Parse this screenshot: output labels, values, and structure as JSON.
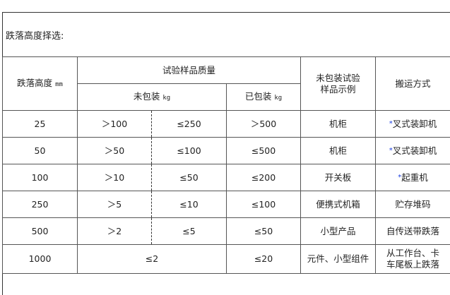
{
  "title": "跌落高度择选:",
  "header": {
    "height": "跌落高度",
    "height_unit": "mm",
    "mass": "试验样品质量",
    "unpacked": "未包装",
    "unpacked_unit": "kg",
    "packed": "已包装",
    "packed_unit": "kg",
    "example_line1": "未包装试验",
    "example_line2": "样品示例",
    "handling": "搬运方式"
  },
  "accent_color": "#1a3de0",
  "rows": [
    {
      "height": "25",
      "min": "＞100",
      "max": "≤250",
      "packed": "＞500",
      "example": "机柜",
      "star": "*",
      "handling": "叉式装卸机"
    },
    {
      "height": "50",
      "min": "＞50",
      "max": "≤100",
      "packed": "≤500",
      "example": "机柜",
      "star": "*",
      "handling": "叉式装卸机"
    },
    {
      "height": "100",
      "min": "＞10",
      "max": "≤50",
      "packed": "≤200",
      "example": "开关板",
      "star": "*",
      "handling": "起重机"
    },
    {
      "height": "250",
      "min": "＞5",
      "max": "≤10",
      "packed": "≤100",
      "example": "便携式机箱",
      "handling": "贮存堆码"
    },
    {
      "height": "500",
      "min": "＞2",
      "max": "≤5",
      "packed": "≤50",
      "example": "小型产品",
      "handling": "自传送带跌落"
    },
    {
      "height": "1000",
      "merged": "≤2",
      "packed": "≤20",
      "example": "元件、小型组件",
      "handling_line1": "从工作台、卡",
      "handling_line2": "车尾板上跌落"
    }
  ]
}
